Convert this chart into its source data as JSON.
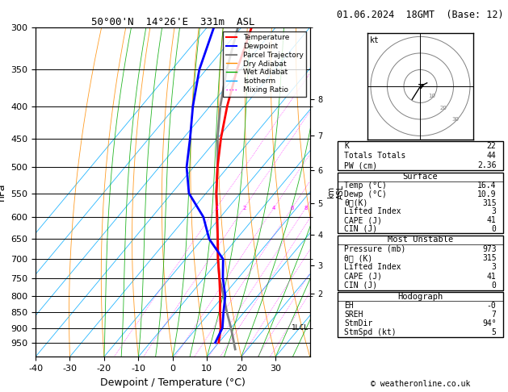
{
  "title_left": "50°00'N  14°26'E  331m  ASL",
  "title_right": "01.06.2024  18GMT  (Base: 12)",
  "xlabel": "Dewpoint / Temperature (°C)",
  "ylabel_left": "hPa",
  "pressure_levels": [
    300,
    350,
    400,
    450,
    500,
    550,
    600,
    650,
    700,
    750,
    800,
    850,
    900,
    950
  ],
  "pressure_ticks": [
    300,
    350,
    400,
    450,
    500,
    550,
    600,
    650,
    700,
    750,
    800,
    850,
    900,
    950
  ],
  "xlim": [
    -40,
    40
  ],
  "xticks": [
    -40,
    -30,
    -20,
    -10,
    0,
    10,
    20,
    30
  ],
  "temp_color": "#ff0000",
  "dewp_color": "#0000ff",
  "parcel_color": "#808080",
  "dry_adiabat_color": "#ff8c00",
  "wet_adiabat_color": "#00aa00",
  "isotherm_color": "#00aaff",
  "mixing_ratio_color": "#ff00ff",
  "temp_profile_T": [
    10.0,
    7.0,
    3.0,
    -1.0,
    -5.5,
    -10.5,
    -15.5,
    -21.0,
    -27.0,
    -33.0,
    -39.0,
    -45.0,
    -51.0,
    -57.0
  ],
  "temp_profile_P": [
    950,
    900,
    850,
    800,
    750,
    700,
    650,
    600,
    550,
    500,
    450,
    400,
    350,
    300
  ],
  "dewp_profile_T": [
    9.0,
    7.5,
    4.0,
    0.5,
    -4.5,
    -9.0,
    -18.0,
    -25.0,
    -35.0,
    -42.0,
    -48.0,
    -55.0,
    -62.0,
    -68.0
  ],
  "dewp_profile_P": [
    950,
    900,
    850,
    800,
    750,
    700,
    650,
    600,
    550,
    500,
    450,
    400,
    350,
    300
  ],
  "parcel_T": [
    16.4,
    10.0,
    5.0,
    0.0,
    -5.5,
    -10.5,
    -15.5,
    -21.0,
    -27.0,
    -33.0,
    -40.0,
    -47.0,
    -54.0,
    -61.0
  ],
  "parcel_P": [
    973,
    900,
    850,
    800,
    750,
    700,
    650,
    600,
    550,
    500,
    450,
    400,
    350,
    300
  ],
  "surface_temp": 16.4,
  "surface_dewp": 10.9,
  "surface_pressure": 973,
  "lcl_pressure": 900,
  "lcl_label": "1LCL",
  "mixing_ratio_lines": [
    1,
    2,
    4,
    6,
    8,
    10,
    15,
    20,
    25
  ],
  "km_ticks": [
    2,
    3,
    4,
    5,
    6,
    7,
    8
  ],
  "km_pressures": [
    795,
    715,
    640,
    570,
    505,
    445,
    390
  ],
  "hodograph_circles": [
    10,
    20,
    30
  ],
  "table_data": {
    "indices": [
      [
        "K",
        "22"
      ],
      [
        "Totals Totals",
        "44"
      ],
      [
        "PW (cm)",
        "2.36"
      ]
    ],
    "surface": {
      "title": "Surface",
      "rows": [
        [
          "Temp (°C)",
          "16.4"
        ],
        [
          "Dewp (°C)",
          "10.9"
        ],
        [
          "θᴇ(K)",
          "315"
        ],
        [
          "Lifted Index",
          "3"
        ],
        [
          "CAPE (J)",
          "41"
        ],
        [
          "CIN (J)",
          "0"
        ]
      ]
    },
    "most_unstable": {
      "title": "Most Unstable",
      "rows": [
        [
          "Pressure (mb)",
          "973"
        ],
        [
          "θᴇ (K)",
          "315"
        ],
        [
          "Lifted Index",
          "3"
        ],
        [
          "CAPE (J)",
          "41"
        ],
        [
          "CIN (J)",
          "0"
        ]
      ]
    },
    "hodograph": {
      "title": "Hodograph",
      "rows": [
        [
          "EH",
          "-0"
        ],
        [
          "SREH",
          "7"
        ],
        [
          "StmDir",
          "94°"
        ],
        [
          "StmSpd (kt)",
          "5"
        ]
      ]
    }
  },
  "copyright": "© weatheronline.co.uk",
  "bg_color": "#ffffff"
}
